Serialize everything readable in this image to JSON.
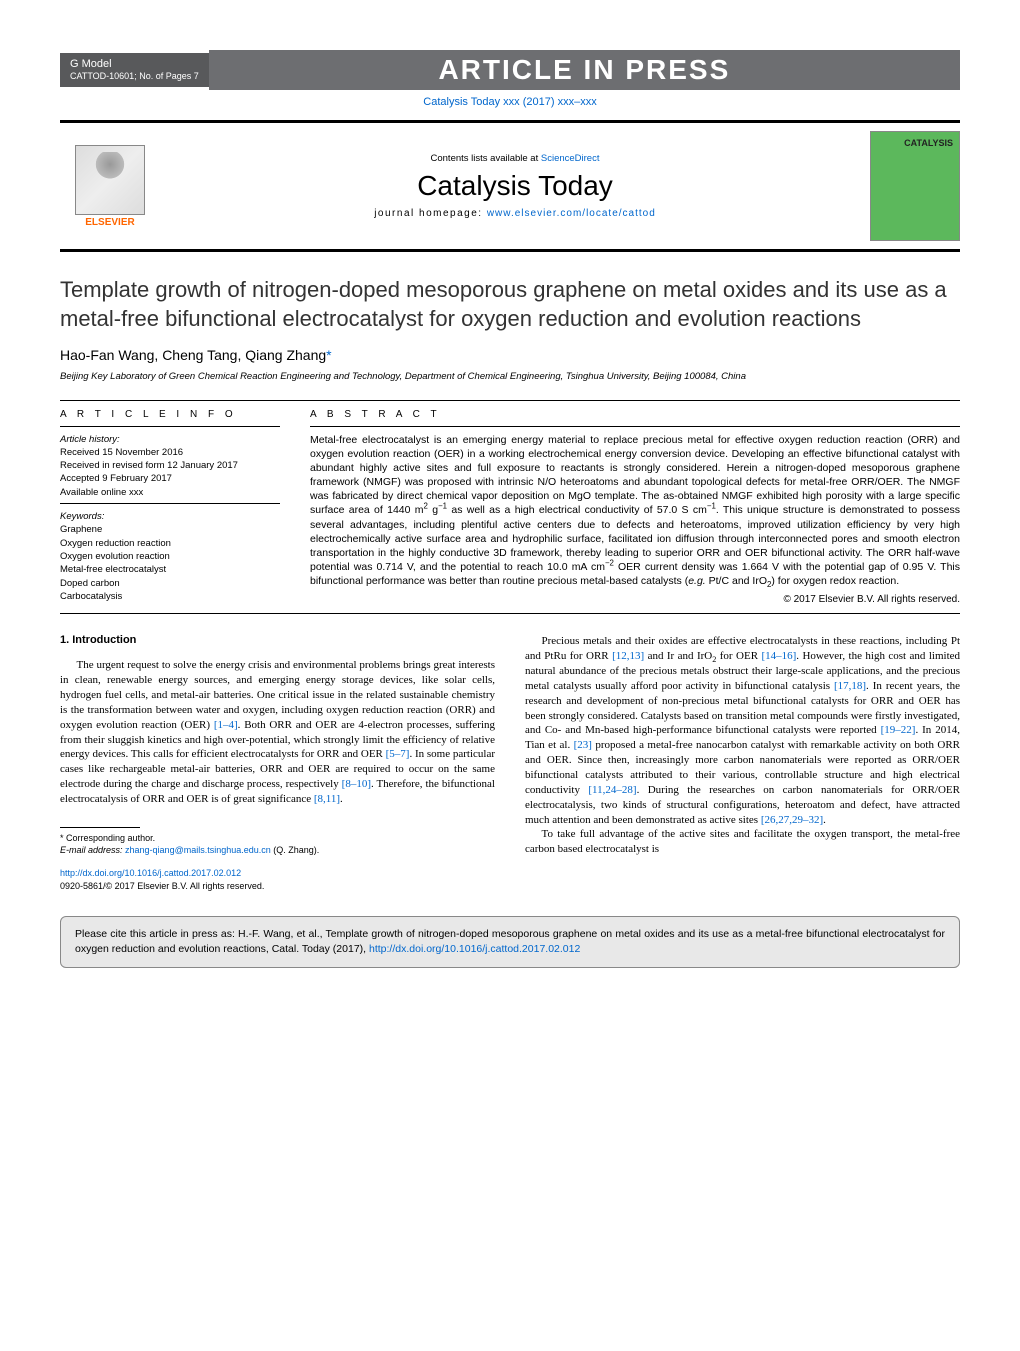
{
  "header": {
    "gmodel_line1": "G Model",
    "gmodel_line2": "CATTOD-10601;   No. of Pages 7",
    "aip_text": "ARTICLE IN PRESS",
    "journal_ref": "Catalysis Today xxx (2017) xxx–xxx",
    "contents_text": "Contents lists available at ",
    "contents_link": "ScienceDirect",
    "journal_title": "Catalysis Today",
    "homepage_label": "journal homepage: ",
    "homepage_url": "www.elsevier.com/locate/cattod",
    "elsevier_label": "ELSEVIER",
    "cover_label": "CATALYSIS"
  },
  "article": {
    "title": "Template growth of nitrogen-doped mesoporous graphene on metal oxides and its use as a metal-free bifunctional electrocatalyst for oxygen reduction and evolution reactions",
    "authors": "Hao-Fan Wang, Cheng Tang, Qiang Zhang",
    "author_mark": "*",
    "affiliation": "Beijing Key Laboratory of Green Chemical Reaction Engineering and Technology, Department of Chemical Engineering, Tsinghua University, Beijing 100084, China"
  },
  "info": {
    "label": "A R T I C L E   I N F O",
    "history_heading": "Article history:",
    "received": "Received 15 November 2016",
    "revised": "Received in revised form 12 January 2017",
    "accepted": "Accepted 9 February 2017",
    "online": "Available online xxx",
    "keywords_heading": "Keywords:",
    "kw1": "Graphene",
    "kw2": "Oxygen reduction reaction",
    "kw3": "Oxygen evolution reaction",
    "kw4": "Metal-free electrocatalyst",
    "kw5": "Doped carbon",
    "kw6": "Carbocatalysis"
  },
  "abstract": {
    "label": "A B S T R A C T",
    "text_a": "Metal-free electrocatalyst is an emerging energy material to replace precious metal for effective oxygen reduction reaction (ORR) and oxygen evolution reaction (OER) in a working electrochemical energy conversion device. Developing an effective bifunctional catalyst with abundant highly active sites and full exposure to reactants is strongly considered. Herein a nitrogen-doped mesoporous graphene framework (NMGF) was proposed with intrinsic N/O heteroatoms and abundant topological defects for metal-free ORR/OER. The NMGF was fabricated by direct chemical vapor deposition on MgO template. The as-obtained NMGF exhibited high porosity with a large specific surface area of 1440 m",
    "text_b": " g",
    "text_c": " as well as a high electrical conductivity of 57.0 S cm",
    "text_d": ". This unique structure is demonstrated to possess several advantages, including plentiful active centers due to defects and heteroatoms, improved utilization efficiency by very high electrochemically active surface area and hydrophilic surface, facilitated ion diffusion through interconnected pores and smooth electron transportation in the highly conductive 3D framework, thereby leading to superior ORR and OER bifunctional activity. The ORR half-wave potential was 0.714 V, and the potential to reach 10.0 mA cm",
    "text_e": " OER current density was 1.664 V with the potential gap of 0.95 V. This bifunctional performance was better than routine precious metal-based catalysts (",
    "text_eg": "e.g.",
    "text_f": " Pt/C and IrO",
    "text_g": ") for oxygen redox reaction.",
    "copyright": "© 2017 Elsevier B.V. All rights reserved."
  },
  "body": {
    "sec1_heading": "1.  Introduction",
    "p1a": "The urgent request to solve the energy crisis and environmental problems brings great interests in clean, renewable energy sources, and emerging energy storage devices, like solar cells, hydrogen fuel cells, and metal-air batteries. One critical issue in the related sustainable chemistry is the transformation between water and oxygen, including oxygen reduction reaction (ORR) and oxygen evolution reaction (OER) ",
    "ref1": "[1–4]",
    "p1b": ". Both ORR and OER are 4-electron processes, suffering from their sluggish kinetics and high over-potential, which strongly limit the efficiency of relative energy devices. This calls for efficient electrocatalysts for ORR and OER ",
    "ref2": "[5–7]",
    "p1c": ". In some particular cases like rechargeable metal-air batteries, ORR and OER are required to occur on the same electrode during the charge and discharge process, respectively ",
    "ref3": "[8–10]",
    "p1d": ". Therefore, the bifunctional electrocatalysis of ORR and OER is of great significance ",
    "ref4": "[8,11]",
    "p1e": ".",
    "p2a": "Precious metals and their oxides are effective electrocatalysts in these reactions, including Pt and PtRu for ORR ",
    "ref5": "[12,13]",
    "p2b": " and Ir and IrO",
    "p2c": " for OER ",
    "ref6": "[14–16]",
    "p2d": ". However, the high cost and limited natural abundance of the precious metals obstruct their large-scale applications, and the precious metal catalysts usually afford poor activity in bifunctional catalysis ",
    "ref7": "[17,18]",
    "p2e": ". In recent years, the research and development of non-precious metal bifunctional catalysts for ORR and OER has been strongly considered. Catalysts based on transition metal compounds were firstly investigated, and Co- and Mn-based high-performance bifunctional catalysts were reported ",
    "ref8": "[19–22]",
    "p2f": ". In 2014, Tian et al. ",
    "ref9": "[23]",
    "p2g": " proposed a metal-free nanocarbon catalyst with remarkable activity on both ORR and OER. Since then, increasingly more carbon nanomaterials were reported as ORR/OER bifunctional catalysts attributed to their various, controllable structure and high electrical conductivity ",
    "ref10": "[11,24–28]",
    "p2h": ". During the researches on carbon nanomaterials for ORR/OER electrocatalysis, two kinds of structural configurations, heteroatom and defect, have attracted much attention and been demonstrated as active sites ",
    "ref11": "[26,27,29–32]",
    "p2i": ".",
    "p3": "To take full advantage of the active sites and facilitate the oxygen transport, the metal-free carbon based electrocatalyst is"
  },
  "footnote": {
    "corr_label": "Corresponding author.",
    "email_label": "E-mail address: ",
    "email": "zhang-qiang@mails.tsinghua.edu.cn",
    "email_suffix": " (Q. Zhang).",
    "doi_url": "http://dx.doi.org/10.1016/j.cattod.2017.02.012",
    "issn_line": "0920-5861/© 2017 Elsevier B.V. All rights reserved."
  },
  "citebox": {
    "text_a": "Please cite this article in press as: H.-F. Wang, et al., Template growth of nitrogen-doped mesoporous graphene on metal oxides and its use as a metal-free bifunctional electrocatalyst for oxygen reduction and evolution reactions, Catal. Today (2017), ",
    "link": "http://dx.doi.org/10.1016/j.cattod.2017.02.012"
  },
  "colors": {
    "link": "#0066cc",
    "banner_bg": "#6d6e71",
    "gmodel_bg": "#58595b",
    "cover_bg": "#5cb85c",
    "citebox_bg": "#e8e8e8",
    "elsevier_orange": "#ff6600"
  }
}
